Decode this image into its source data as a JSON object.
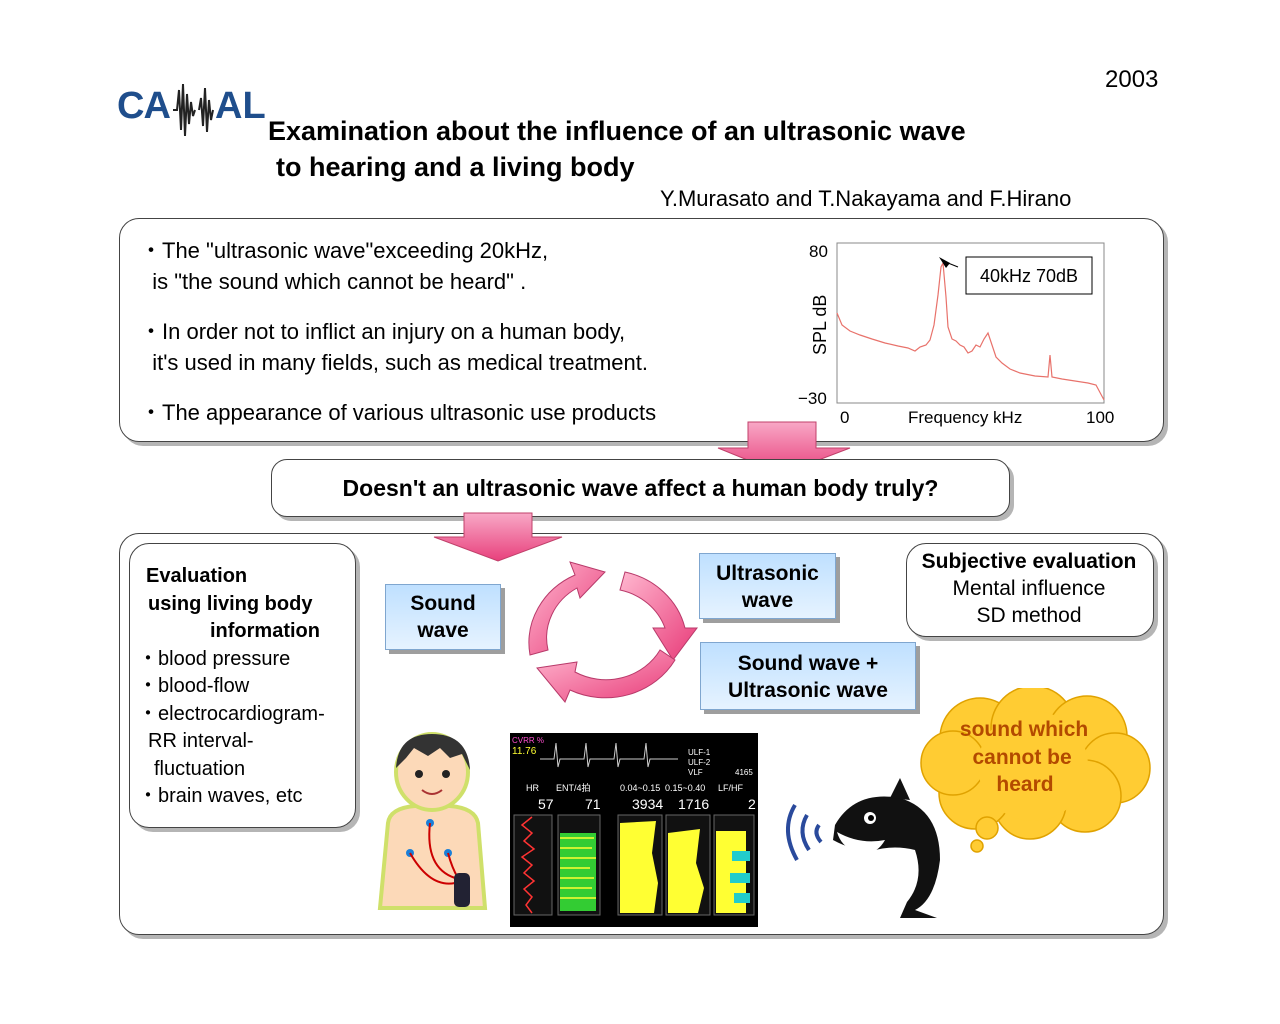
{
  "year": "2003",
  "logo": {
    "text": "CAMAL"
  },
  "title": {
    "line1": "Examination about the influence of  an ultrasonic wave",
    "line2": "to hearing and a living body"
  },
  "authors": "Y.Murasato and T.Nakayama and F.Hirano",
  "intro": {
    "bullets": [
      {
        "line1": "・The \"ultrasonic wave\"exceeding 20kHz,",
        "line2": "  is \"the sound which cannot be heard\" ."
      },
      {
        "line1": "・In order not to inflict an injury on a human body,",
        "line2": "  it's used in many fields, such as medical treatment."
      },
      {
        "line1": "・The appearance of various ultrasonic use products",
        "line2": ""
      }
    ]
  },
  "spectrum": {
    "y_max": "80",
    "y_min": "−30",
    "ylabel": "SPL  dB",
    "x_min": "0",
    "x_max": "100",
    "xlabel": "Frequency  kHz",
    "annotation": "40kHz 70dB",
    "line_color": "#e8726b"
  },
  "question": "Doesn't an ultrasonic wave affect a human body truly?",
  "evaluation": {
    "lines": [
      "Evaluation",
      "using living body",
      "information",
      "・blood pressure",
      "・blood-flow",
      "・electrocardiogram-",
      "RR interval-",
      "fluctuation",
      "・brain waves, etc"
    ]
  },
  "stimuli": {
    "sound": [
      "Sound",
      "wave"
    ],
    "ultra": [
      "Ultrasonic",
      "wave"
    ],
    "combo": [
      "Sound wave +",
      "Ultrasonic wave"
    ]
  },
  "subjective": {
    "lines": [
      "Subjective evaluation",
      "Mental influence",
      "SD method"
    ]
  },
  "cloud": {
    "lines": [
      "sound which",
      "cannot be",
      "heard"
    ]
  },
  "monitor": {
    "tag": "CVRR %",
    "value": "11.76",
    "bands": [
      "ULF-1",
      "ULF-2",
      "VLF"
    ],
    "vlf_value": "4165",
    "headers": [
      "HR",
      "ENT/4拍",
      "0.04~0.15",
      "0.15~0.40",
      "LF/HF"
    ],
    "values": [
      "57",
      "71",
      "3934",
      "1716",
      "2"
    ]
  },
  "colors": {
    "arrow_pink": "#ee5a8c",
    "cloud_fill": "#ffcc33",
    "cloud_text": "#b34a00",
    "box_blue": "#bfe0ff"
  }
}
